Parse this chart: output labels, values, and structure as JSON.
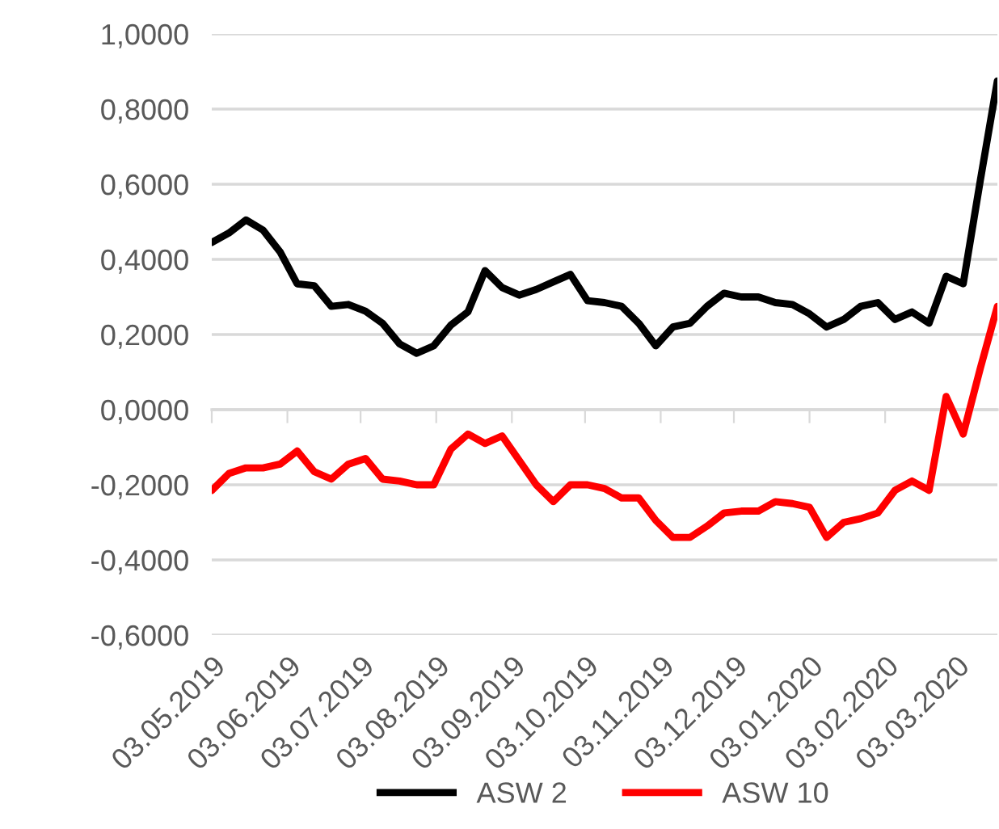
{
  "chart_data": {
    "type": "line",
    "x": [
      "2019-05-03",
      "2019-05-10",
      "2019-05-17",
      "2019-05-24",
      "2019-05-31",
      "2019-06-07",
      "2019-06-14",
      "2019-06-21",
      "2019-06-28",
      "2019-07-05",
      "2019-07-12",
      "2019-07-19",
      "2019-07-26",
      "2019-08-02",
      "2019-08-09",
      "2019-08-16",
      "2019-08-23",
      "2019-08-30",
      "2019-09-06",
      "2019-09-13",
      "2019-09-20",
      "2019-09-27",
      "2019-10-04",
      "2019-10-11",
      "2019-10-18",
      "2019-10-25",
      "2019-11-01",
      "2019-11-08",
      "2019-11-15",
      "2019-11-22",
      "2019-11-29",
      "2019-12-06",
      "2019-12-13",
      "2019-12-20",
      "2019-12-27",
      "2020-01-03",
      "2020-01-10",
      "2020-01-17",
      "2020-01-24",
      "2020-01-31",
      "2020-02-07",
      "2020-02-14",
      "2020-02-21",
      "2020-02-28",
      "2020-03-06",
      "2020-03-13",
      "2020-03-20"
    ],
    "series": [
      {
        "name": "ASW 2",
        "color": "#000000",
        "values": [
          0.445,
          0.47,
          0.505,
          0.478,
          0.42,
          0.335,
          0.33,
          0.275,
          0.28,
          0.262,
          0.23,
          0.175,
          0.15,
          0.17,
          0.225,
          0.26,
          0.37,
          0.325,
          0.305,
          0.32,
          0.34,
          0.36,
          0.29,
          0.285,
          0.275,
          0.23,
          0.17,
          0.22,
          0.23,
          0.275,
          0.31,
          0.3,
          0.3,
          0.285,
          0.28,
          0.255,
          0.22,
          0.24,
          0.275,
          0.285,
          0.24,
          0.26,
          0.23,
          0.355,
          0.335,
          0.61,
          0.875
        ]
      },
      {
        "name": "ASW 10",
        "color": "#ff0000",
        "values": [
          -0.215,
          -0.17,
          -0.155,
          -0.155,
          -0.145,
          -0.11,
          -0.165,
          -0.185,
          -0.145,
          -0.13,
          -0.185,
          -0.19,
          -0.2,
          -0.2,
          -0.105,
          -0.065,
          -0.09,
          -0.07,
          -0.135,
          -0.2,
          -0.245,
          -0.2,
          -0.2,
          -0.21,
          -0.235,
          -0.235,
          -0.295,
          -0.34,
          -0.34,
          -0.31,
          -0.275,
          -0.27,
          -0.27,
          -0.245,
          -0.25,
          -0.26,
          -0.34,
          -0.3,
          -0.29,
          -0.275,
          -0.215,
          -0.19,
          -0.215,
          0.035,
          -0.065,
          0.11,
          0.275
        ]
      }
    ],
    "xlim": [
      "2019-05-03",
      "2020-03-20"
    ],
    "xticks": [
      {
        "value": "2019-05-03",
        "label": "03.05.2019"
      },
      {
        "value": "2019-06-03",
        "label": "03.06.2019"
      },
      {
        "value": "2019-07-03",
        "label": "03.07.2019"
      },
      {
        "value": "2019-08-03",
        "label": "03.08.2019"
      },
      {
        "value": "2019-09-03",
        "label": "03.09.2019"
      },
      {
        "value": "2019-10-03",
        "label": "03.10.2019"
      },
      {
        "value": "2019-11-03",
        "label": "03.11.2019"
      },
      {
        "value": "2019-12-03",
        "label": "03.12.2019"
      },
      {
        "value": "2020-01-03",
        "label": "03.01.2020"
      },
      {
        "value": "2020-02-03",
        "label": "03.02.2020"
      },
      {
        "value": "2020-03-03",
        "label": "03.03.2020"
      }
    ],
    "ylim": [
      -0.6,
      1.0
    ],
    "yticks": [
      {
        "value": -0.6,
        "label": "-0,6000"
      },
      {
        "value": -0.4,
        "label": "-0,4000"
      },
      {
        "value": -0.2,
        "label": "-0,2000"
      },
      {
        "value": 0,
        "label": "0,0000"
      },
      {
        "value": 0.2,
        "label": "0,2000"
      },
      {
        "value": 0.4,
        "label": "0,4000"
      },
      {
        "value": 0.6,
        "label": "0,6000"
      },
      {
        "value": 0.8,
        "label": "0,8000"
      },
      {
        "value": 1.0,
        "label": "1,0000"
      }
    ],
    "grid": "y",
    "legend": "bottom",
    "marker": "none",
    "line_style": "solid"
  }
}
